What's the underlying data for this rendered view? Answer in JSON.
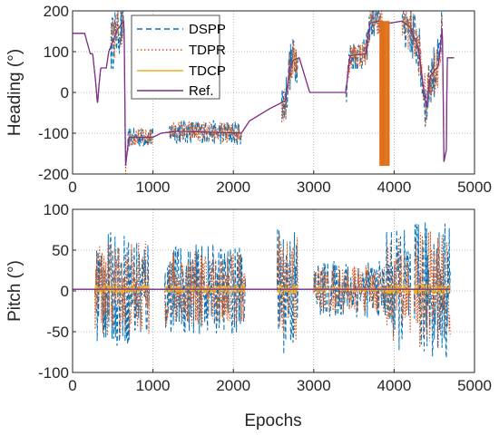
{
  "chart_data": [
    {
      "type": "line",
      "ylabel": "Heading (°)",
      "xlabel": "",
      "xlim": [
        0,
        5000
      ],
      "ylim": [
        -200,
        200
      ],
      "xticks": [
        "0",
        "1000",
        "2000",
        "3000",
        "4000",
        "5000"
      ],
      "yticks": [
        "-200",
        "-100",
        "0",
        "100",
        "200"
      ],
      "grid": true,
      "legend_position": "top-center",
      "series": [
        {
          "name": "DSPP",
          "style": "dashed",
          "color": "#0072BD"
        },
        {
          "name": "TDPR",
          "style": "dotted",
          "color": "#D95319"
        },
        {
          "name": "TDCP",
          "style": "solid",
          "color": "#EDB120"
        },
        {
          "name": "Ref.",
          "style": "solid",
          "color": "#7E2F8E"
        }
      ],
      "reference_path": [
        [
          0,
          145
        ],
        [
          150,
          145
        ],
        [
          220,
          95
        ],
        [
          250,
          95
        ],
        [
          290,
          20
        ],
        [
          310,
          -30
        ],
        [
          330,
          20
        ],
        [
          350,
          60
        ],
        [
          420,
          60
        ],
        [
          450,
          100
        ],
        [
          560,
          155
        ],
        [
          640,
          175
        ],
        [
          660,
          -180
        ],
        [
          700,
          -110
        ],
        [
          1000,
          -110
        ],
        [
          1100,
          -100
        ],
        [
          1300,
          -95
        ],
        [
          2100,
          -100
        ],
        [
          2200,
          -70
        ],
        [
          2450,
          -40
        ],
        [
          2550,
          -30
        ],
        [
          2650,
          -20
        ],
        [
          2700,
          60
        ],
        [
          2750,
          80
        ],
        [
          2820,
          85
        ],
        [
          2950,
          0
        ],
        [
          3400,
          0
        ],
        [
          3450,
          90
        ],
        [
          3650,
          95
        ],
        [
          3700,
          170
        ],
        [
          3800,
          175
        ],
        [
          3950,
          170
        ],
        [
          4100,
          175
        ],
        [
          4200,
          160
        ],
        [
          4300,
          110
        ],
        [
          4400,
          -40
        ],
        [
          4450,
          40
        ],
        [
          4550,
          65
        ],
        [
          4600,
          160
        ],
        [
          4620,
          -170
        ],
        [
          4650,
          -140
        ],
        [
          4660,
          85
        ],
        [
          4750,
          85
        ]
      ],
      "noisy_segments": [
        {
          "x": [
            480,
            660
          ],
          "amp": 70
        },
        {
          "x": [
            680,
            1000
          ],
          "amp": 25
        },
        {
          "x": [
            1200,
            2100
          ],
          "amp": 30
        },
        {
          "x": [
            2600,
            2800
          ],
          "amp": 60
        },
        {
          "x": [
            3400,
            3850
          ],
          "amp": 40
        },
        {
          "x": [
            4100,
            4600
          ],
          "amp": 70
        }
      ],
      "tdcp_band": {
        "x": [
          3820,
          3940
        ],
        "ylim": [
          -180,
          175
        ]
      }
    },
    {
      "type": "line",
      "ylabel": "Pitch (°)",
      "xlabel": "Epochs",
      "xlim": [
        0,
        5000
      ],
      "ylim": [
        -100,
        100
      ],
      "xticks": [
        "0",
        "1000",
        "2000",
        "3000",
        "4000",
        "5000"
      ],
      "yticks": [
        "-100",
        "-50",
        "0",
        "50",
        "100"
      ],
      "grid": true,
      "series": [
        {
          "name": "DSPP",
          "style": "dashed",
          "color": "#0072BD"
        },
        {
          "name": "TDPR",
          "style": "dotted",
          "color": "#D95319"
        },
        {
          "name": "TDCP",
          "style": "solid",
          "color": "#EDB120"
        },
        {
          "name": "Ref.",
          "style": "solid",
          "color": "#7E2F8E"
        }
      ],
      "reference_level": 2,
      "noisy_segments": [
        {
          "x": [
            280,
            950
          ],
          "amp": 70
        },
        {
          "x": [
            1150,
            2150
          ],
          "amp": 55
        },
        {
          "x": [
            2550,
            2800
          ],
          "amp": 80
        },
        {
          "x": [
            3000,
            3900
          ],
          "amp": 35
        },
        {
          "x": [
            3900,
            4200
          ],
          "amp": 75
        },
        {
          "x": [
            4250,
            4700
          ],
          "amp": 85
        }
      ]
    }
  ]
}
